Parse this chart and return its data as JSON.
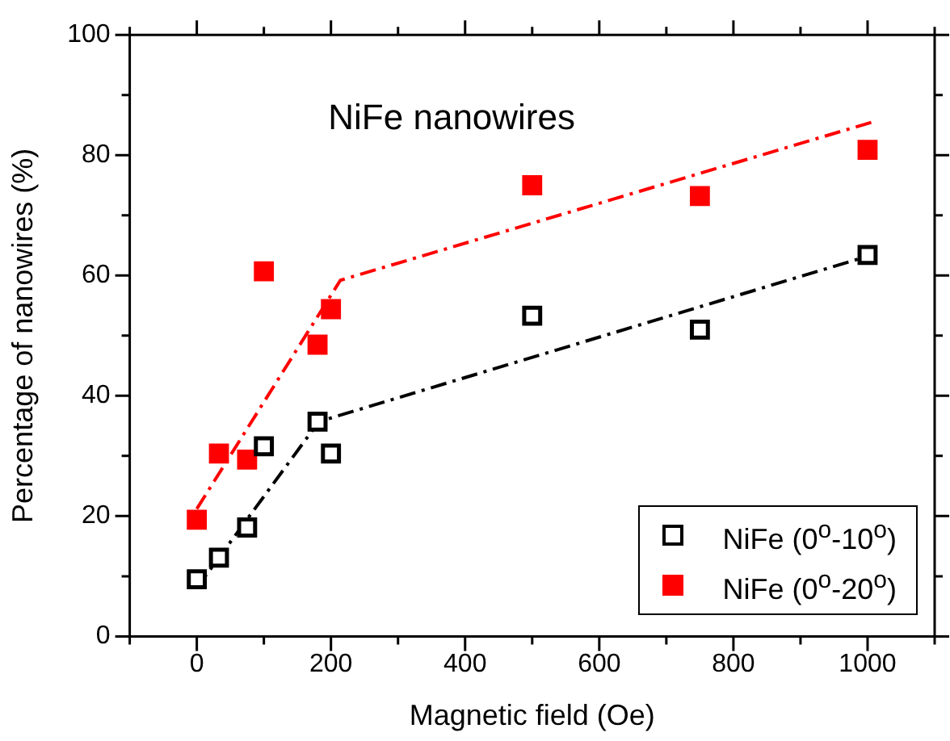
{
  "chart_data": {
    "type": "scatter",
    "title": "NiFe nanowires",
    "xlabel": "Magnetic field (Oe)",
    "ylabel": "Percentage of nanowires (%)",
    "xlim": [
      -100,
      1100
    ],
    "xticks": [
      {
        "value": -100,
        "label": null
      },
      0,
      {
        "value": 100,
        "label": null
      },
      200,
      {
        "value": 300,
        "label": null
      },
      400,
      {
        "value": 500,
        "label": null
      },
      600,
      {
        "value": 700,
        "label": null
      },
      800,
      {
        "value": 900,
        "label": null
      },
      1000,
      {
        "value": 1100,
        "label": null
      }
    ],
    "ylim": [
      0,
      100
    ],
    "yticks": [
      0,
      {
        "value": 10,
        "label": null
      },
      20,
      {
        "value": 30,
        "label": null
      },
      40,
      {
        "value": 50,
        "label": null
      },
      60,
      {
        "value": 70,
        "label": null
      },
      80,
      {
        "value": 90,
        "label": null
      },
      100
    ],
    "grid": false,
    "legend": "bottom right",
    "marker": "square",
    "series": [
      {
        "name": "NiFe (0$^{o}$-10$^{o}$)",
        "color": "#000000",
        "x": [
          0,
          33,
          75,
          100,
          180,
          200,
          500,
          750,
          1000
        ],
        "values": [
          9.5,
          13.1,
          18.1,
          31.6,
          35.7,
          30.4,
          53.3,
          51.0,
          63.4
        ]
      },
      {
        "name": "NiFe (0$^{o}$-20$^{o}$)",
        "color": "#ff0000",
        "x": [
          0,
          33,
          75,
          100,
          180,
          200,
          500,
          750,
          1000
        ],
        "values": [
          19.4,
          30.4,
          29.4,
          60.7,
          48.5,
          54.4,
          75.0,
          73.2,
          80.9
        ]
      },
      {
        "type": "line",
        "color": "#000000",
        "line_style": "dashed",
        "marker": "none",
        "x": [
          0,
          182,
          1000
        ],
        "values": [
          8.1,
          35.7,
          63.2
        ]
      },
      {
        "type": "line",
        "color": "#ff0000",
        "line_style": "dashed",
        "marker": "none",
        "x": [
          0,
          214,
          1010
        ],
        "values": [
          21.2,
          59.2,
          85.6
        ]
      }
    ]
  }
}
